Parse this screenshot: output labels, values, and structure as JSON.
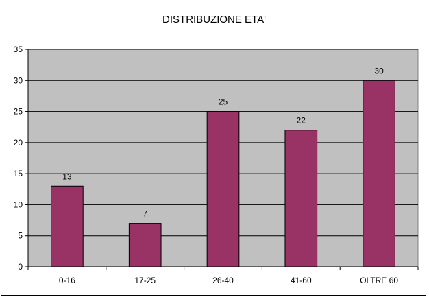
{
  "chart_data": {
    "type": "bar",
    "title": "DISTRIBUZIONE ETA'",
    "xlabel": "",
    "ylabel": "",
    "categories": [
      "0-16",
      "17-25",
      "26-40",
      "41-60",
      "OLTRE 60"
    ],
    "values": [
      13,
      7,
      25,
      22,
      30
    ],
    "ylim": [
      0,
      35
    ],
    "yticks": [
      0,
      5,
      10,
      15,
      20,
      25,
      30,
      35
    ],
    "grid": true,
    "legend": "none",
    "colors": {
      "bar": "#993366",
      "plot_background": "#c0c0c0",
      "gridline": "#000000"
    }
  }
}
